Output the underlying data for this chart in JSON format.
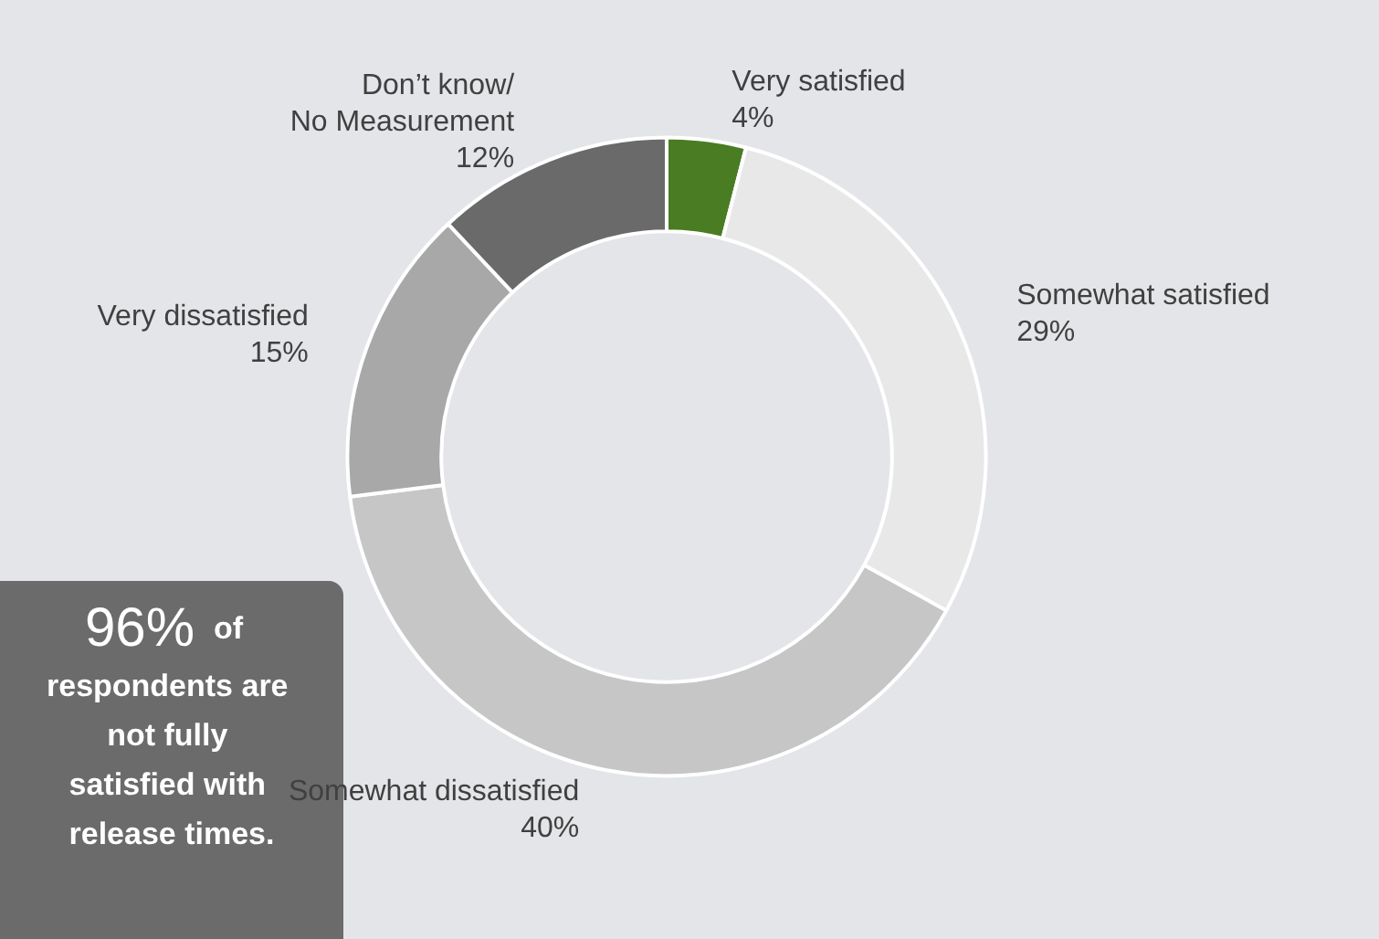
{
  "chart_data": {
    "type": "donut",
    "categories": [
      "Very satisfied",
      "Somewhat satisfied",
      "Somewhat dissatisfied",
      "Very dissatisfied",
      "Don’t know/ No Measurement"
    ],
    "values": [
      4,
      29,
      40,
      15,
      12
    ],
    "value_labels": [
      "4%",
      "29%",
      "40%",
      "15%",
      "12%"
    ],
    "colors": [
      "#4a7c23",
      "#e8e8e8",
      "#c6c6c6",
      "#a8a8a8",
      "#6a6a6a"
    ],
    "legend": false,
    "annotations": [
      "96% of respondents are not fully satisfied with release times."
    ]
  }
}
